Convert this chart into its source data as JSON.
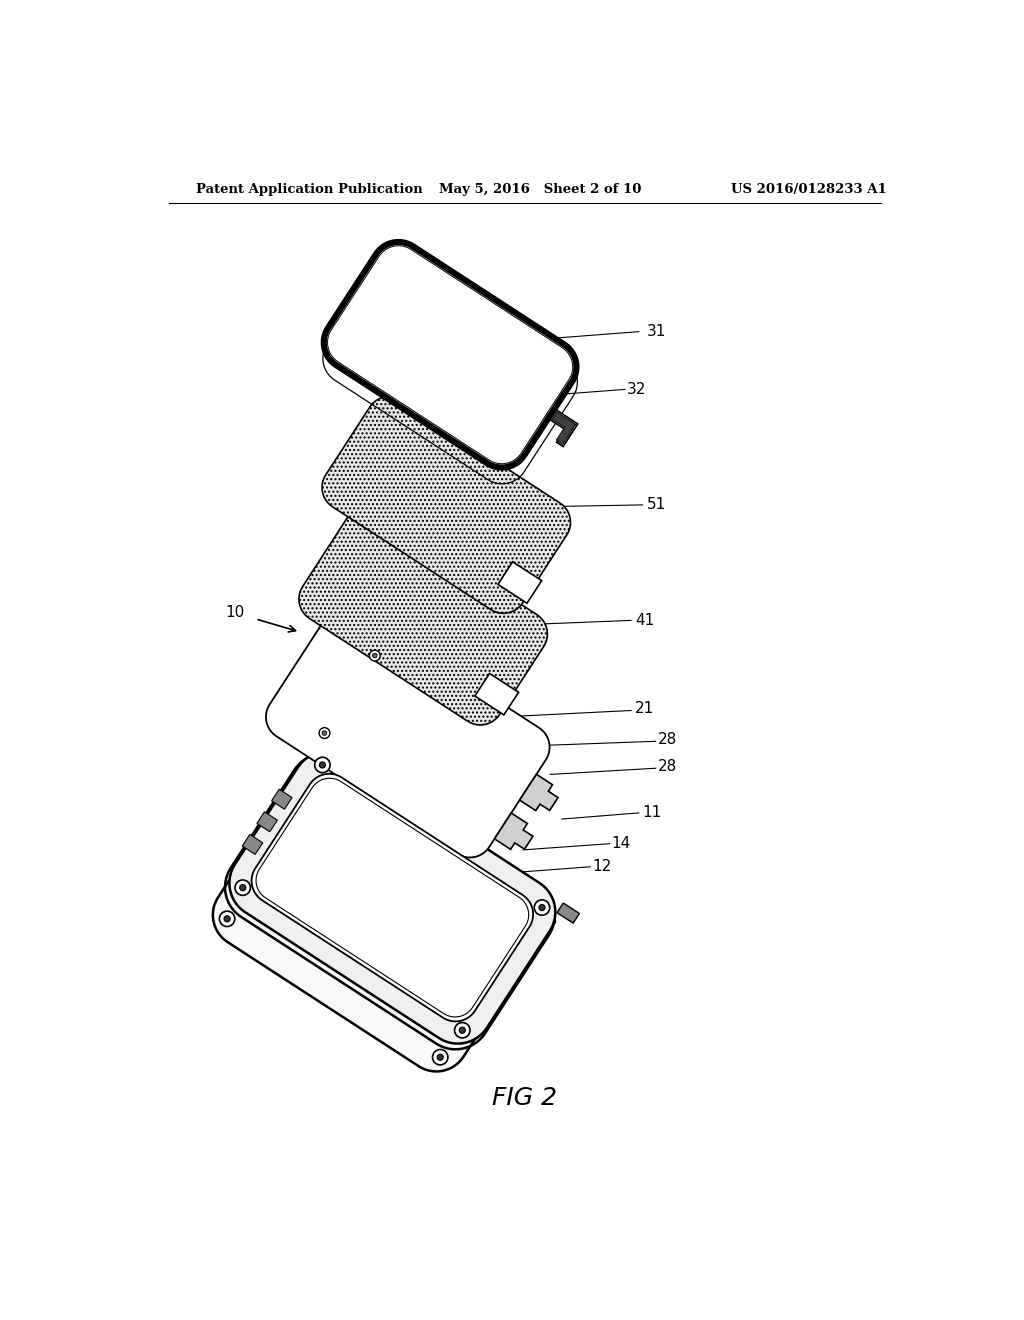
{
  "background_color": "#ffffff",
  "header_left": "Patent Application Publication",
  "header_mid": "May 5, 2016   Sheet 2 of 10",
  "header_right": "US 2016/0128233 A1",
  "fig_label": "FIG 2"
}
